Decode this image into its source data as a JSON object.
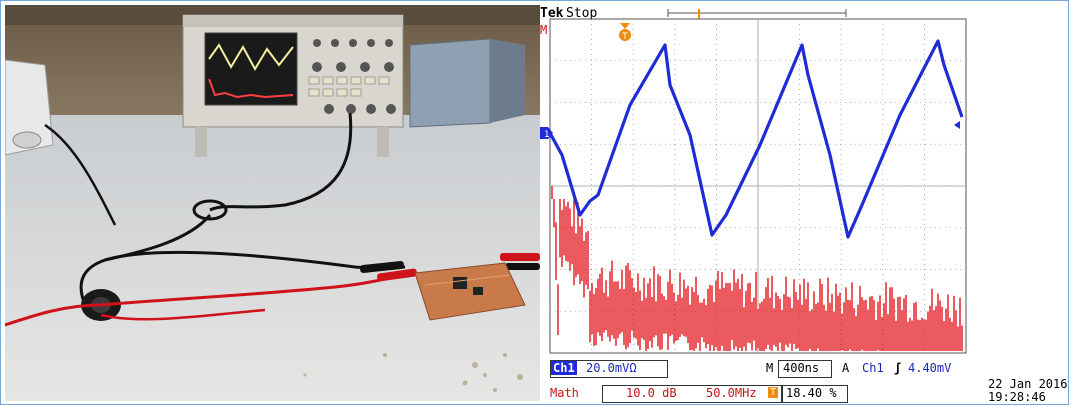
{
  "photo": {
    "scene": "lab-bench-with-oscilloscope-and-pcb"
  },
  "scope": {
    "brand": "Tek",
    "run_state": "Stop",
    "marker_m": "M",
    "channel1_marker": "1",
    "ch1_label": "Ch1",
    "ch1_scale": "20.0mVΩ",
    "m_label": "M",
    "timebase": "400ns",
    "a_label": "A",
    "trigger_channel": "Ch1",
    "trigger_slope": "ʃ",
    "trigger_level": "4.40mV",
    "math_label": "Math",
    "math_scale": "10.0 dB",
    "math_freq": "50.0MHz",
    "trigger_pos_icon": "T",
    "trigger_pos_percent": "18.40 %",
    "date": "22 Jan  2016",
    "time": "19:28:46",
    "colors": {
      "ch1": "#1e2bd6",
      "math": "#e0141a",
      "grid": "#9a9a9a",
      "trigger": "#f08a10"
    }
  }
}
